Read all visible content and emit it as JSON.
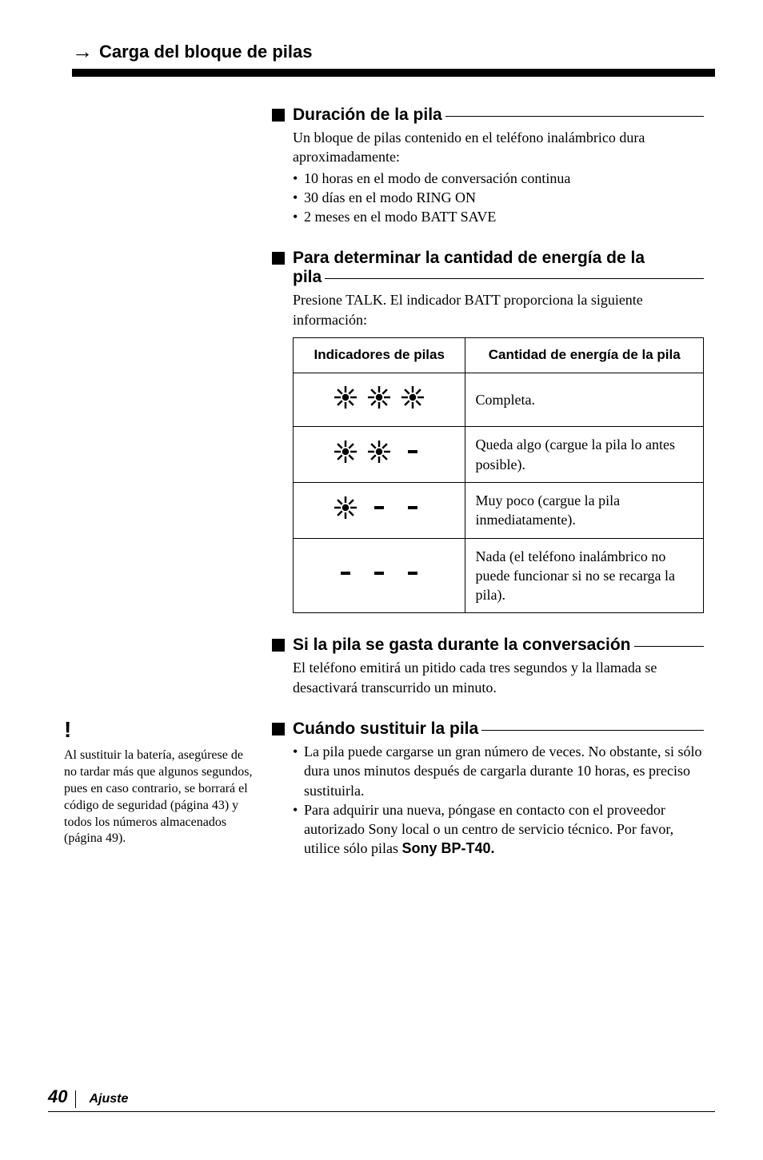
{
  "header": {
    "arrow": "→",
    "title": "Carga del bloque de pilas"
  },
  "sections": {
    "duracion": {
      "title": "Duración de la pila",
      "intro": "Un bloque de pilas contenido en el teléfono inalámbrico dura aproximadamente:",
      "items": [
        "10 horas en el modo de conversación continua",
        "30 días en el modo RING ON",
        "2 meses en el modo BATT SAVE"
      ]
    },
    "determinar": {
      "title_line1": "Para determinar la cantidad de energía de la",
      "title_line2": "pila",
      "body": "Presione TALK. El indicador BATT proporciona la siguiente información:",
      "table": {
        "col1": "Indicadores de pilas",
        "col2": "Cantidad de energía de la pila",
        "rows": [
          {
            "level": 3,
            "text": "Completa."
          },
          {
            "level": 2,
            "text": "Queda algo (cargue la pila lo antes posible)."
          },
          {
            "level": 1,
            "text": "Muy poco (cargue la pila inmediatamente)."
          },
          {
            "level": 0,
            "text": "Nada (el teléfono inalámbrico no puede funcionar si no se recarga la pila)."
          }
        ]
      }
    },
    "gasta": {
      "title": "Si la pila se gasta durante la conversación",
      "body": "El teléfono emitirá un pitido cada tres segundos y la llamada se desactivará transcurrido un minuto."
    },
    "sustituir": {
      "title": "Cuándo sustituir la pila",
      "items": [
        "La pila puede cargarse un gran número de veces. No obstante, si sólo dura unos minutos después de cargarla durante 10 horas, es preciso sustituirla.",
        "Para adquirir una nueva, póngase en contacto con el proveedor autorizado Sony local o un centro de servicio técnico. Por favor, utilice sólo pilas "
      ],
      "bold_trail": "Sony BP-T40."
    }
  },
  "sidebar": {
    "bang": "!",
    "text": "Al sustituir la batería, asegúrese de no tardar más que algunos segundos, pues en caso contrario, se borrará el código de seguridad (página 43) y todos los números almacenados (página 49)."
  },
  "footer": {
    "page": "40",
    "label": "Ajuste"
  },
  "style": {
    "star_stroke": "#000000",
    "dash_fill": "#000000"
  }
}
